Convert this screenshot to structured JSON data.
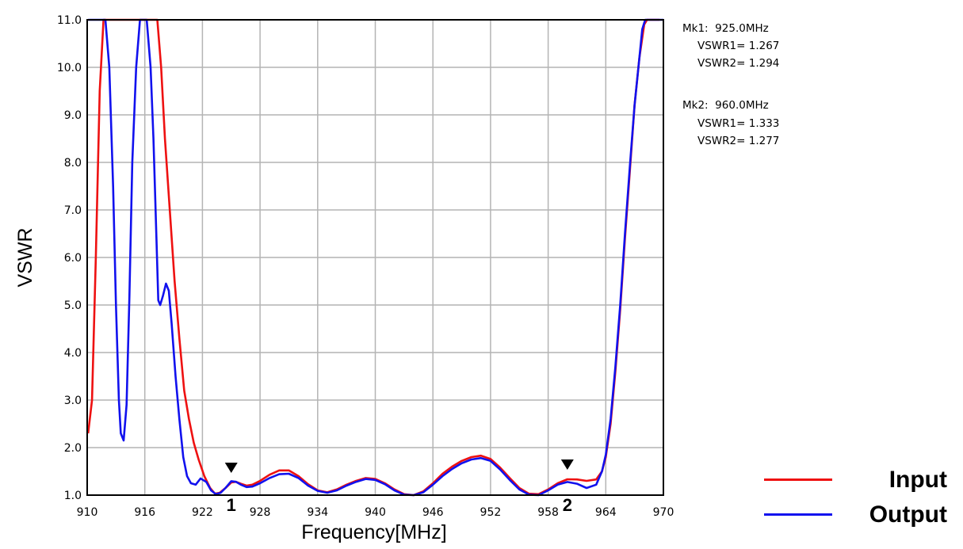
{
  "colors": {
    "input": "#ee1111",
    "output": "#1111ee",
    "grid": "#b4b4b4"
  },
  "chart_data": {
    "type": "line",
    "xlabel": "Frequency[MHz]",
    "ylabel": "VSWR",
    "xlim": [
      910,
      970
    ],
    "ylim": [
      1.0,
      11.0
    ],
    "x_ticks": [
      "910",
      "916",
      "922",
      "928",
      "934",
      "940",
      "946",
      "952",
      "958",
      "964",
      "970"
    ],
    "y_ticks": [
      "1.0",
      "2.0",
      "3.0",
      "4.0",
      "5.0",
      "6.0",
      "7.0",
      "8.0",
      "9.0",
      "10.0",
      "11.0"
    ],
    "grid": true,
    "legend_position": "bottom-right",
    "series": [
      {
        "name": "Input",
        "color": "#ee1111",
        "points": [
          [
            910.1,
            2.3
          ],
          [
            910.5,
            3.0
          ],
          [
            910.9,
            6.0
          ],
          [
            911.3,
            9.5
          ],
          [
            911.7,
            11.0
          ],
          [
            917.3,
            11.0
          ],
          [
            917.7,
            10.0
          ],
          [
            918.1,
            8.5
          ],
          [
            918.6,
            7.0
          ],
          [
            919.1,
            5.5
          ],
          [
            919.6,
            4.3
          ],
          [
            920.1,
            3.2
          ],
          [
            920.6,
            2.6
          ],
          [
            921.1,
            2.1
          ],
          [
            921.6,
            1.75
          ],
          [
            922.2,
            1.4
          ],
          [
            922.8,
            1.15
          ],
          [
            923.3,
            1.03
          ],
          [
            923.8,
            1.05
          ],
          [
            924.4,
            1.15
          ],
          [
            925.0,
            1.267
          ],
          [
            925.5,
            1.28
          ],
          [
            926.0,
            1.24
          ],
          [
            926.6,
            1.2
          ],
          [
            927.2,
            1.22
          ],
          [
            928.0,
            1.3
          ],
          [
            929.0,
            1.43
          ],
          [
            930.0,
            1.52
          ],
          [
            931.0,
            1.52
          ],
          [
            932.0,
            1.4
          ],
          [
            933.0,
            1.23
          ],
          [
            934.0,
            1.1
          ],
          [
            935.0,
            1.06
          ],
          [
            936.0,
            1.12
          ],
          [
            937.0,
            1.22
          ],
          [
            938.0,
            1.3
          ],
          [
            939.0,
            1.36
          ],
          [
            940.0,
            1.34
          ],
          [
            941.0,
            1.25
          ],
          [
            942.0,
            1.12
          ],
          [
            943.0,
            1.02
          ],
          [
            944.0,
            1.0
          ],
          [
            945.0,
            1.08
          ],
          [
            946.0,
            1.25
          ],
          [
            947.0,
            1.45
          ],
          [
            948.0,
            1.6
          ],
          [
            949.0,
            1.72
          ],
          [
            950.0,
            1.8
          ],
          [
            951.0,
            1.83
          ],
          [
            952.0,
            1.76
          ],
          [
            953.0,
            1.58
          ],
          [
            954.0,
            1.36
          ],
          [
            955.0,
            1.15
          ],
          [
            956.0,
            1.03
          ],
          [
            957.0,
            1.02
          ],
          [
            958.0,
            1.12
          ],
          [
            959.0,
            1.25
          ],
          [
            960.0,
            1.333
          ],
          [
            961.0,
            1.33
          ],
          [
            962.0,
            1.3
          ],
          [
            963.0,
            1.33
          ],
          [
            963.6,
            1.5
          ],
          [
            964.0,
            1.8
          ],
          [
            964.5,
            2.5
          ],
          [
            965.0,
            3.6
          ],
          [
            965.5,
            4.9
          ],
          [
            966.0,
            6.4
          ],
          [
            966.5,
            7.8
          ],
          [
            967.0,
            9.2
          ],
          [
            967.5,
            10.2
          ],
          [
            968.0,
            10.9
          ],
          [
            968.3,
            11.0
          ],
          [
            969.6,
            11.0
          ]
        ]
      },
      {
        "name": "Output",
        "color": "#1111ee",
        "points": [
          [
            910.1,
            11.0
          ],
          [
            911.9,
            11.0
          ],
          [
            912.3,
            10.0
          ],
          [
            912.7,
            7.5
          ],
          [
            913.0,
            5.0
          ],
          [
            913.3,
            3.0
          ],
          [
            913.5,
            2.3
          ],
          [
            913.8,
            2.15
          ],
          [
            914.1,
            2.9
          ],
          [
            914.4,
            5.2
          ],
          [
            914.7,
            8.0
          ],
          [
            915.1,
            10.0
          ],
          [
            915.5,
            11.0
          ],
          [
            916.2,
            11.0
          ],
          [
            916.6,
            10.0
          ],
          [
            916.9,
            8.5
          ],
          [
            917.2,
            6.5
          ],
          [
            917.4,
            5.1
          ],
          [
            917.6,
            5.0
          ],
          [
            917.9,
            5.2
          ],
          [
            918.2,
            5.45
          ],
          [
            918.5,
            5.3
          ],
          [
            918.8,
            4.6
          ],
          [
            919.2,
            3.5
          ],
          [
            919.6,
            2.6
          ],
          [
            920.0,
            1.8
          ],
          [
            920.4,
            1.4
          ],
          [
            920.8,
            1.25
          ],
          [
            921.3,
            1.22
          ],
          [
            921.8,
            1.35
          ],
          [
            922.4,
            1.28
          ],
          [
            922.9,
            1.1
          ],
          [
            923.4,
            1.02
          ],
          [
            923.9,
            1.05
          ],
          [
            924.4,
            1.15
          ],
          [
            925.0,
            1.294
          ],
          [
            925.5,
            1.28
          ],
          [
            926.0,
            1.22
          ],
          [
            926.6,
            1.17
          ],
          [
            927.2,
            1.18
          ],
          [
            928.0,
            1.25
          ],
          [
            929.0,
            1.36
          ],
          [
            930.0,
            1.44
          ],
          [
            931.0,
            1.45
          ],
          [
            932.0,
            1.36
          ],
          [
            933.0,
            1.2
          ],
          [
            934.0,
            1.09
          ],
          [
            935.0,
            1.05
          ],
          [
            936.0,
            1.1
          ],
          [
            937.0,
            1.2
          ],
          [
            938.0,
            1.28
          ],
          [
            939.0,
            1.34
          ],
          [
            940.0,
            1.32
          ],
          [
            941.0,
            1.23
          ],
          [
            942.0,
            1.1
          ],
          [
            943.0,
            1.01
          ],
          [
            944.0,
            1.0
          ],
          [
            945.0,
            1.06
          ],
          [
            946.0,
            1.22
          ],
          [
            947.0,
            1.4
          ],
          [
            948.0,
            1.55
          ],
          [
            949.0,
            1.67
          ],
          [
            950.0,
            1.75
          ],
          [
            951.0,
            1.78
          ],
          [
            952.0,
            1.72
          ],
          [
            953.0,
            1.54
          ],
          [
            954.0,
            1.32
          ],
          [
            955.0,
            1.12
          ],
          [
            956.0,
            1.01
          ],
          [
            957.0,
            1.0
          ],
          [
            958.0,
            1.1
          ],
          [
            959.0,
            1.22
          ],
          [
            960.0,
            1.277
          ],
          [
            961.0,
            1.24
          ],
          [
            962.0,
            1.15
          ],
          [
            963.0,
            1.22
          ],
          [
            963.6,
            1.5
          ],
          [
            964.0,
            1.85
          ],
          [
            964.5,
            2.6
          ],
          [
            965.0,
            3.7
          ],
          [
            965.5,
            5.0
          ],
          [
            966.0,
            6.5
          ],
          [
            966.5,
            7.9
          ],
          [
            967.0,
            9.2
          ],
          [
            967.5,
            10.2
          ],
          [
            967.8,
            10.8
          ],
          [
            968.1,
            11.0
          ],
          [
            970.0,
            11.0
          ]
        ]
      }
    ],
    "markers": [
      {
        "label": "1",
        "x": 925.0,
        "y": 1.267
      },
      {
        "label": "2",
        "x": 960.0,
        "y": 1.333
      }
    ],
    "annotations": {
      "mk1_title": "Mk1:  925.0MHz",
      "mk1_vswr1": "VSWR1= 1.267",
      "mk1_vswr2": "VSWR2= 1.294",
      "mk2_title": "Mk2:  960.0MHz",
      "mk2_vswr1": "VSWR1= 1.333",
      "mk2_vswr2": "VSWR2= 1.277"
    }
  },
  "legend": {
    "input_label": "Input",
    "output_label": "Output"
  }
}
